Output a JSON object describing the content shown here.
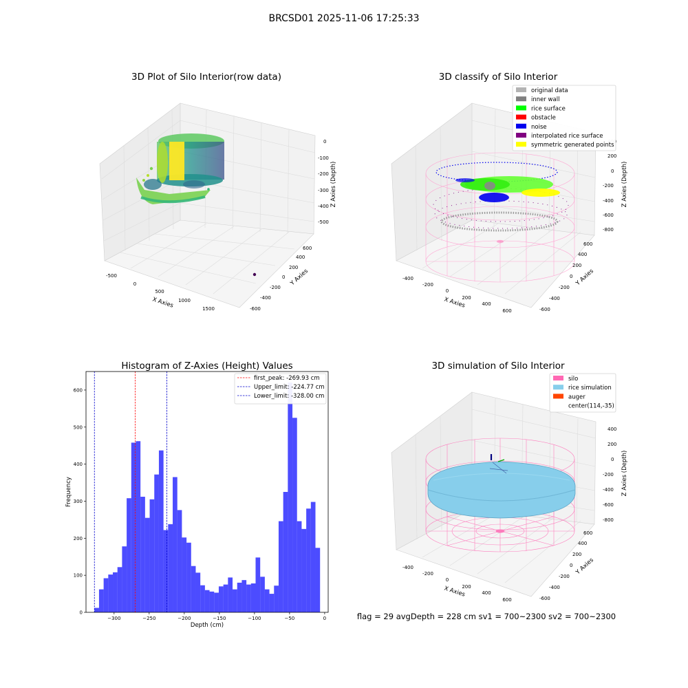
{
  "suptitle": "BRCSD01 2025-11-06 17:25:33",
  "panels": {
    "raw": {
      "title": "3D Plot of Silo Interior(row data)",
      "xlabel": "X Axies",
      "ylabel": "Y Axies",
      "zlabel": "Z Axies (Depth)",
      "xticks": [
        "-500",
        "0",
        "500",
        "1000",
        "1500"
      ],
      "yticks": [
        "600",
        "400",
        "200",
        "0",
        "-200",
        "-400",
        "-600"
      ],
      "zticks": [
        "0",
        "-100",
        "-200",
        "-300",
        "-400",
        "-500"
      ]
    },
    "classify": {
      "title": "3D classify of Silo Interior",
      "xlabel": "X Axies",
      "ylabel": "Y Axies",
      "zlabel": "Z Axies (Depth)",
      "xticks": [
        "-400",
        "-200",
        "0",
        "200",
        "400",
        "600"
      ],
      "yticks": [
        "600",
        "400",
        "200",
        "0",
        "-200",
        "-400",
        "-600"
      ],
      "zticks": [
        "400",
        "200",
        "0",
        "-200",
        "-400",
        "-600",
        "-800"
      ],
      "legend": [
        {
          "label": "original data",
          "color": "#b3b3b3"
        },
        {
          "label": "inner wall",
          "color": "#808080"
        },
        {
          "label": "rice surface",
          "color": "#00ff00"
        },
        {
          "label": "obstacle",
          "color": "#ff0000"
        },
        {
          "label": "noise",
          "color": "#0000ee"
        },
        {
          "label": "interpolated rice surface",
          "color": "#800080"
        },
        {
          "label": "symmetric generated points",
          "color": "#ffff00"
        }
      ]
    },
    "simulation": {
      "title": "3D simulation of Silo Interior",
      "xlabel": "X Axies",
      "ylabel": "Y Axies",
      "zlabel": "Z Axies (Depth)",
      "xticks": [
        "-400",
        "-200",
        "0",
        "200",
        "400",
        "600"
      ],
      "yticks": [
        "600",
        "400",
        "200",
        "0",
        "-200",
        "-400",
        "-600"
      ],
      "zticks": [
        "400",
        "200",
        "0",
        "-200",
        "-400",
        "-600",
        "-800"
      ],
      "legend": [
        {
          "label": "silo",
          "color": "#ff69b4"
        },
        {
          "label": "rice simulation",
          "color": "#87ceeb"
        },
        {
          "label": "auger",
          "color": "#ff4500"
        },
        {
          "label": "center(114,-35)",
          "color": ""
        }
      ]
    }
  },
  "chart_data": {
    "type": "bar",
    "title": "Histogram of Z-Axies (Height) Values",
    "xlabel": "Depth (cm)",
    "ylabel": "Frequency",
    "xlim": [
      -340,
      5
    ],
    "ylim": [
      0,
      650
    ],
    "xticks": [
      -300,
      -250,
      -200,
      -150,
      -100,
      -50,
      0
    ],
    "yticks": [
      0,
      100,
      200,
      300,
      400,
      500,
      600
    ],
    "bin_start": -328,
    "bin_width": 6.56,
    "counts": [
      12,
      62,
      92,
      102,
      108,
      122,
      178,
      308,
      458,
      462,
      312,
      255,
      305,
      372,
      437,
      222,
      238,
      365,
      276,
      202,
      188,
      125,
      107,
      73,
      60,
      56,
      53,
      70,
      75,
      94,
      62,
      80,
      87,
      75,
      78,
      148,
      96,
      62,
      50,
      72,
      246,
      325,
      620,
      525,
      246,
      225,
      280,
      298,
      174
    ],
    "bar_color": "#0000ff",
    "lines": [
      {
        "label": "first_peak: -269.93 cm",
        "value": -269.93,
        "color": "#ff0000"
      },
      {
        "label": "Upper_limit: -224.77 cm",
        "value": -224.77,
        "color": "#0000cc"
      },
      {
        "label": "Lower_limit: -328.00 cm",
        "value": -328.0,
        "color": "#0000cc"
      }
    ]
  },
  "footer": {
    "text": "flag = 29  avgDepth = 228 cm  sv1 = 700~2300  sv2 = 700~2300"
  }
}
